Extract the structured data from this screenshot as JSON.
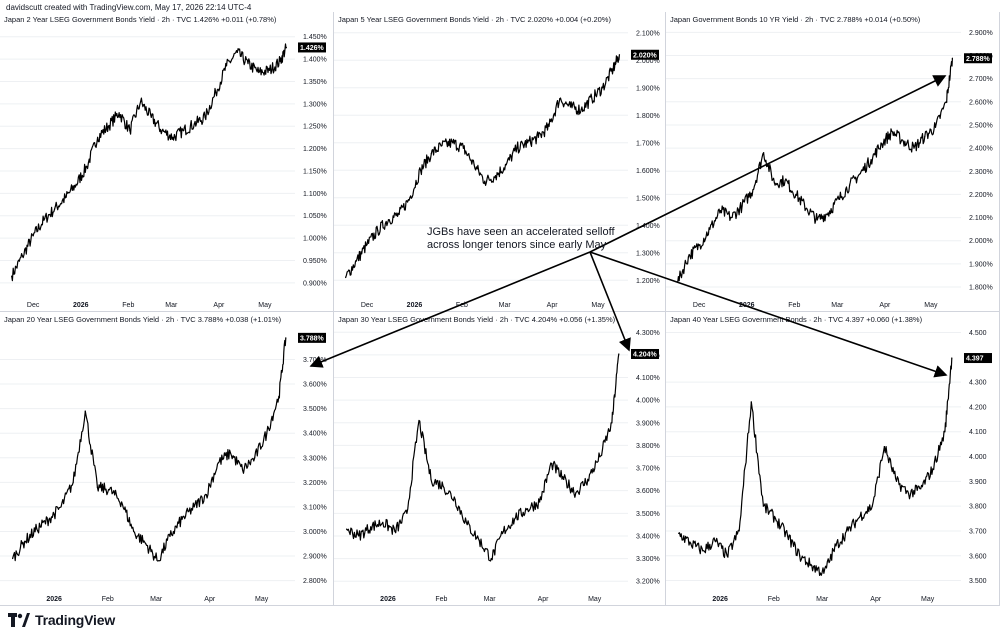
{
  "credit": "davidscutt created with TradingView.com, May 17, 2026 22:14 UTC-4",
  "annotation": {
    "line1": "JGBs have seen an accelerated selloff",
    "line2": "across longer tenors since early May"
  },
  "logo_text": "TradingView",
  "colors": {
    "series": "#000000",
    "grid": "#eef0f3",
    "axis_text": "#131722",
    "badge_bg": "#000000",
    "badge_text": "#ffffff"
  },
  "chart_data": [
    {
      "type": "line",
      "title": "Japan 2 Year LSEG Government Bonds Yield · 2h · TVC  1.426%  +0.011 (+0.78%)",
      "last_label": "1.426%",
      "x_ticks": [
        "Dec",
        "2026",
        "Feb",
        "Mar",
        "Apr",
        "May"
      ],
      "y_ticks": [
        "0.900%",
        "0.950%",
        "1.000%",
        "1.050%",
        "1.100%",
        "1.150%",
        "1.200%",
        "1.250%",
        "1.300%",
        "1.350%",
        "1.400%",
        "1.450%"
      ],
      "ylim": [
        0.875,
        1.465
      ],
      "x": [
        "2025-11-17",
        "2025-11-24",
        "2025-12-01",
        "2025-12-08",
        "2025-12-15",
        "2025-12-22",
        "2025-12-29",
        "2026-01-05",
        "2026-01-12",
        "2026-01-19",
        "2026-01-26",
        "2026-02-02",
        "2026-02-09",
        "2026-02-16",
        "2026-02-23",
        "2026-03-02",
        "2026-03-09",
        "2026-03-16",
        "2026-03-23",
        "2026-03-30",
        "2026-04-06",
        "2026-04-13",
        "2026-04-20",
        "2026-04-27",
        "2026-05-04",
        "2026-05-11",
        "2026-05-15"
      ],
      "values": [
        0.915,
        0.96,
        1.005,
        1.04,
        1.065,
        1.09,
        1.12,
        1.16,
        1.225,
        1.25,
        1.28,
        1.24,
        1.305,
        1.27,
        1.24,
        1.225,
        1.24,
        1.255,
        1.27,
        1.325,
        1.385,
        1.415,
        1.39,
        1.37,
        1.375,
        1.395,
        1.426
      ]
    },
    {
      "type": "line",
      "title": "Japan 5 Year LSEG Government Bonds Yield · 2h · TVC  2.020%  +0.004 (+0.20%)",
      "last_label": "2.020%",
      "x_ticks": [
        "Dec",
        "2026",
        "Feb",
        "Mar",
        "Apr",
        "May"
      ],
      "y_ticks": [
        "1.200%",
        "1.300%",
        "1.400%",
        "1.500%",
        "1.600%",
        "1.700%",
        "1.800%",
        "1.900%",
        "2.000%",
        "2.100%"
      ],
      "ylim": [
        1.15,
        2.11
      ],
      "x": [
        "2025-11-17",
        "2025-11-24",
        "2025-12-01",
        "2025-12-08",
        "2025-12-15",
        "2025-12-22",
        "2025-12-29",
        "2026-01-05",
        "2026-01-12",
        "2026-01-19",
        "2026-01-26",
        "2026-02-02",
        "2026-02-09",
        "2026-02-16",
        "2026-02-23",
        "2026-03-02",
        "2026-03-09",
        "2026-03-16",
        "2026-03-23",
        "2026-03-30",
        "2026-04-06",
        "2026-04-13",
        "2026-04-20",
        "2026-04-27",
        "2026-05-04",
        "2026-05-11",
        "2026-05-15"
      ],
      "values": [
        1.21,
        1.27,
        1.33,
        1.38,
        1.42,
        1.44,
        1.5,
        1.6,
        1.66,
        1.69,
        1.7,
        1.68,
        1.62,
        1.56,
        1.58,
        1.62,
        1.68,
        1.7,
        1.72,
        1.76,
        1.86,
        1.83,
        1.82,
        1.86,
        1.9,
        1.97,
        2.02
      ]
    },
    {
      "type": "line",
      "title": "Japan Government Bonds 10 YR Yield · 2h · TVC  2.788%  +0.014 (+0.50%)",
      "last_label": "2.788%",
      "x_ticks": [
        "Dec",
        "2026",
        "Feb",
        "Mar",
        "Apr",
        "May"
      ],
      "y_ticks": [
        "1.800%",
        "1.900%",
        "2.000%",
        "2.100%",
        "2.200%",
        "2.300%",
        "2.400%",
        "2.500%",
        "2.600%",
        "2.700%",
        "2.800%",
        "2.900%"
      ],
      "ylim": [
        1.77,
        2.91
      ],
      "x": [
        "2025-11-17",
        "2025-11-24",
        "2025-12-01",
        "2025-12-08",
        "2025-12-15",
        "2025-12-22",
        "2025-12-29",
        "2026-01-05",
        "2026-01-12",
        "2026-01-19",
        "2026-01-26",
        "2026-02-02",
        "2026-02-09",
        "2026-02-16",
        "2026-02-23",
        "2026-03-02",
        "2026-03-09",
        "2026-03-16",
        "2026-03-23",
        "2026-03-30",
        "2026-04-06",
        "2026-04-13",
        "2026-04-20",
        "2026-04-27",
        "2026-05-04",
        "2026-05-11",
        "2026-05-15"
      ],
      "values": [
        1.82,
        1.93,
        1.98,
        2.05,
        2.13,
        2.1,
        2.15,
        2.22,
        2.38,
        2.25,
        2.26,
        2.2,
        2.14,
        2.09,
        2.12,
        2.18,
        2.24,
        2.29,
        2.35,
        2.42,
        2.47,
        2.43,
        2.4,
        2.45,
        2.49,
        2.6,
        2.788
      ]
    },
    {
      "type": "line",
      "title": "Japan 20 Year LSEG Government Bonds Yield · 2h · TVC  3.788%  +0.038 (+1.01%)",
      "last_label": "3.788%",
      "x_ticks": [
        "2026",
        "Feb",
        "Mar",
        "Apr",
        "May"
      ],
      "y_ticks": [
        "2.800%",
        "2.900%",
        "3.000%",
        "3.100%",
        "3.200%",
        "3.300%",
        "3.400%",
        "3.500%",
        "3.600%",
        "3.700%"
      ],
      "ylim": [
        2.77,
        3.82
      ],
      "x": [
        "2025-12-08",
        "2025-12-15",
        "2025-12-22",
        "2025-12-29",
        "2026-01-05",
        "2026-01-12",
        "2026-01-19",
        "2026-01-26",
        "2026-02-02",
        "2026-02-09",
        "2026-02-16",
        "2026-02-23",
        "2026-03-02",
        "2026-03-09",
        "2026-03-16",
        "2026-03-23",
        "2026-03-30",
        "2026-04-06",
        "2026-04-13",
        "2026-04-20",
        "2026-04-27",
        "2026-05-04",
        "2026-05-11",
        "2026-05-15"
      ],
      "values": [
        2.89,
        2.96,
        3.01,
        3.05,
        3.1,
        3.2,
        3.49,
        3.18,
        3.17,
        3.12,
        3.0,
        2.95,
        2.88,
        2.98,
        3.05,
        3.1,
        3.15,
        3.28,
        3.32,
        3.25,
        3.3,
        3.4,
        3.55,
        3.788
      ]
    },
    {
      "type": "line",
      "title": "Japan 30 Year LSEG Government Bonds Yield · 2h · TVC  4.204%  +0.056 (+1.35%)",
      "last_label": "4.204%",
      "x_ticks": [
        "2026",
        "Feb",
        "Mar",
        "Apr",
        "May"
      ],
      "y_ticks": [
        "3.200%",
        "3.300%",
        "3.400%",
        "3.500%",
        "3.600%",
        "3.700%",
        "3.800%",
        "3.900%",
        "4.000%",
        "4.100%",
        "4.200%",
        "4.300%"
      ],
      "ylim": [
        3.17,
        4.31
      ],
      "x": [
        "2025-12-08",
        "2025-12-15",
        "2025-12-22",
        "2025-12-29",
        "2026-01-05",
        "2026-01-12",
        "2026-01-19",
        "2026-01-26",
        "2026-02-02",
        "2026-02-09",
        "2026-02-16",
        "2026-02-23",
        "2026-03-02",
        "2026-03-09",
        "2026-03-16",
        "2026-03-23",
        "2026-03-30",
        "2026-04-06",
        "2026-04-13",
        "2026-04-20",
        "2026-04-27",
        "2026-05-04",
        "2026-05-11",
        "2026-05-15"
      ],
      "values": [
        3.43,
        3.4,
        3.44,
        3.46,
        3.42,
        3.5,
        3.91,
        3.65,
        3.62,
        3.56,
        3.45,
        3.38,
        3.3,
        3.42,
        3.48,
        3.52,
        3.55,
        3.72,
        3.65,
        3.59,
        3.65,
        3.75,
        3.9,
        4.204
      ]
    },
    {
      "type": "line",
      "title": "Japan 40 Year LSEG Government Bonds · 2h · TVC  4.397  +0.060 (+1.38%)",
      "last_label": "4.397",
      "x_ticks": [
        "2026",
        "Feb",
        "Mar",
        "Apr",
        "May"
      ],
      "y_ticks": [
        "3.500",
        "3.600",
        "3.700",
        "3.800",
        "3.900",
        "4.000",
        "4.100",
        "4.200",
        "4.300",
        "4.500"
      ],
      "ylim": [
        3.47,
        4.51
      ],
      "x": [
        "2025-12-08",
        "2025-12-15",
        "2025-12-22",
        "2025-12-29",
        "2026-01-05",
        "2026-01-12",
        "2026-01-19",
        "2026-01-26",
        "2026-02-02",
        "2026-02-09",
        "2026-02-16",
        "2026-02-23",
        "2026-03-02",
        "2026-03-09",
        "2026-03-16",
        "2026-03-23",
        "2026-03-30",
        "2026-04-06",
        "2026-04-13",
        "2026-04-20",
        "2026-04-27",
        "2026-05-04",
        "2026-05-11",
        "2026-05-15"
      ],
      "values": [
        3.69,
        3.65,
        3.62,
        3.66,
        3.6,
        3.7,
        4.22,
        3.8,
        3.75,
        3.68,
        3.6,
        3.56,
        3.53,
        3.64,
        3.7,
        3.76,
        3.8,
        4.04,
        3.9,
        3.85,
        3.87,
        3.95,
        4.1,
        4.397
      ]
    }
  ]
}
